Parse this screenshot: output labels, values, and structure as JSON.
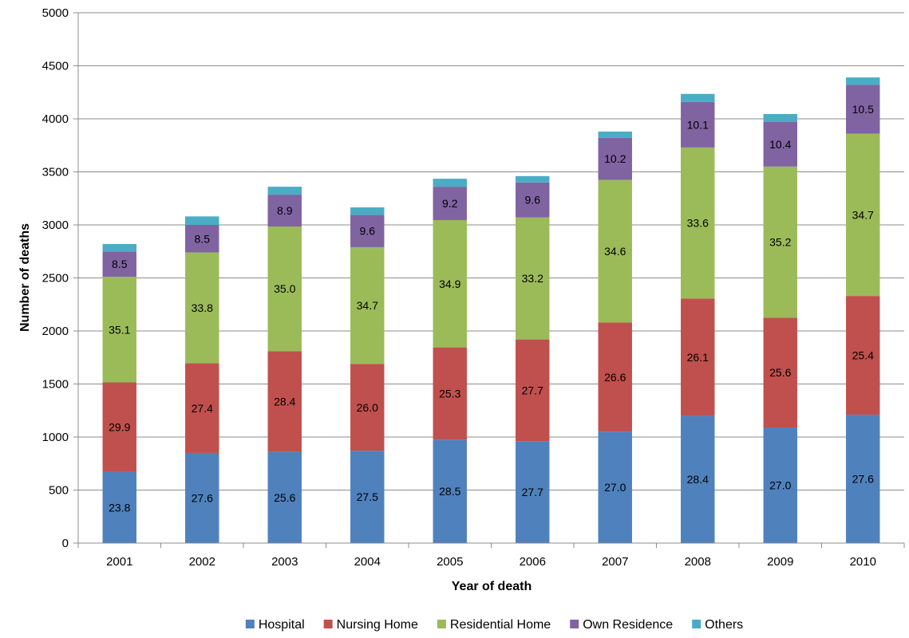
{
  "chart_data": {
    "type": "bar",
    "stacked": true,
    "title": "",
    "xlabel": "Year of death",
    "ylabel": "Number of deaths",
    "ylim": [
      0,
      5000
    ],
    "ytick_step": 500,
    "grid": "horizontal",
    "legend_position": "bottom",
    "categories": [
      "2001",
      "2002",
      "2003",
      "2004",
      "2005",
      "2006",
      "2007",
      "2008",
      "2009",
      "2010"
    ],
    "series": [
      {
        "name": "Hospital",
        "color": "#4F81BD",
        "values": [
          670,
          850,
          860,
          870,
          975,
          960,
          1050,
          1200,
          1090,
          1210
        ],
        "labels": [
          "23.8",
          "27.6",
          "25.6",
          "27.5",
          "28.5",
          "27.7",
          "27.0",
          "28.4",
          "27.0",
          "27.6"
        ]
      },
      {
        "name": "Nursing Home",
        "color": "#C0504D",
        "values": [
          845,
          845,
          950,
          820,
          870,
          960,
          1030,
          1105,
          1035,
          1120
        ],
        "labels": [
          "29.9",
          "27.4",
          "28.4",
          "26.0",
          "25.3",
          "27.7",
          "26.6",
          "26.1",
          "25.6",
          "25.4"
        ]
      },
      {
        "name": "Residential Home",
        "color": "#9BBB59",
        "values": [
          995,
          1045,
          1175,
          1100,
          1200,
          1150,
          1345,
          1425,
          1425,
          1530
        ],
        "labels": [
          "35.1",
          "33.8",
          "35.0",
          "34.7",
          "34.9",
          "33.2",
          "34.6",
          "33.6",
          "35.2",
          "34.7"
        ]
      },
      {
        "name": "Own Residence",
        "color": "#8064A2",
        "values": [
          240,
          260,
          300,
          305,
          315,
          330,
          395,
          430,
          420,
          460
        ],
        "labels": [
          "8.5",
          "8.5",
          "8.9",
          "9.6",
          "9.2",
          "9.6",
          "10.2",
          "10.1",
          "10.4",
          "10.5"
        ]
      },
      {
        "name": "Others",
        "color": "#4BACC6",
        "values": [
          70,
          80,
          75,
          70,
          75,
          60,
          60,
          75,
          75,
          70
        ],
        "labels": [
          "",
          "",
          "",
          "",
          "",
          "",
          "",
          "",
          "",
          ""
        ]
      }
    ]
  }
}
